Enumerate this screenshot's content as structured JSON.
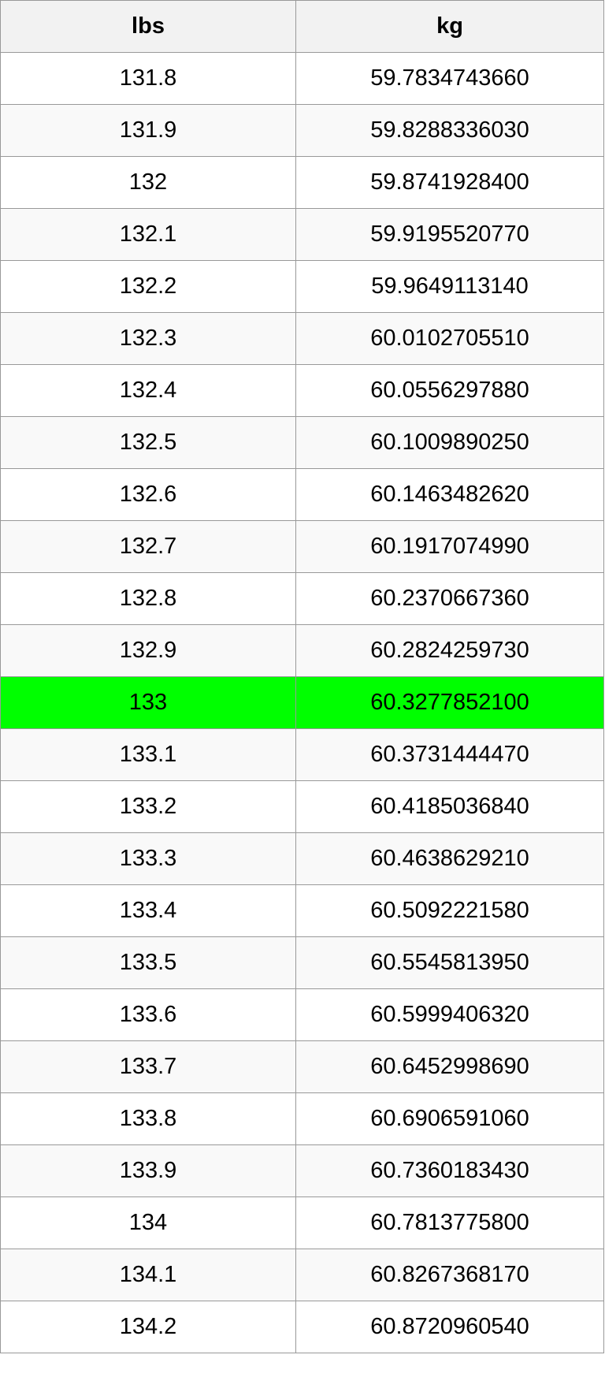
{
  "table": {
    "header": [
      "lbs",
      "kg"
    ],
    "rows": [
      [
        "131.8",
        "59.7834743660"
      ],
      [
        "131.9",
        "59.8288336030"
      ],
      [
        "132",
        "59.8741928400"
      ],
      [
        "132.1",
        "59.9195520770"
      ],
      [
        "132.2",
        "59.9649113140"
      ],
      [
        "132.3",
        "60.0102705510"
      ],
      [
        "132.4",
        "60.0556297880"
      ],
      [
        "132.5",
        "60.1009890250"
      ],
      [
        "132.6",
        "60.1463482620"
      ],
      [
        "132.7",
        "60.1917074990"
      ],
      [
        "132.8",
        "60.2370667360"
      ],
      [
        "132.9",
        "60.2824259730"
      ],
      [
        "133",
        "60.3277852100"
      ],
      [
        "133.1",
        "60.3731444470"
      ],
      [
        "133.2",
        "60.4185036840"
      ],
      [
        "133.3",
        "60.4638629210"
      ],
      [
        "133.4",
        "60.5092221580"
      ],
      [
        "133.5",
        "60.5545813950"
      ],
      [
        "133.6",
        "60.5999406320"
      ],
      [
        "133.7",
        "60.6452998690"
      ],
      [
        "133.8",
        "60.6906591060"
      ],
      [
        "133.9",
        "60.7360183430"
      ],
      [
        "134",
        "60.7813775800"
      ],
      [
        "134.1",
        "60.8267368170"
      ],
      [
        "134.2",
        "60.8720960540"
      ]
    ],
    "highlight": {
      "row": 12,
      "color": "#00ff00"
    }
  }
}
